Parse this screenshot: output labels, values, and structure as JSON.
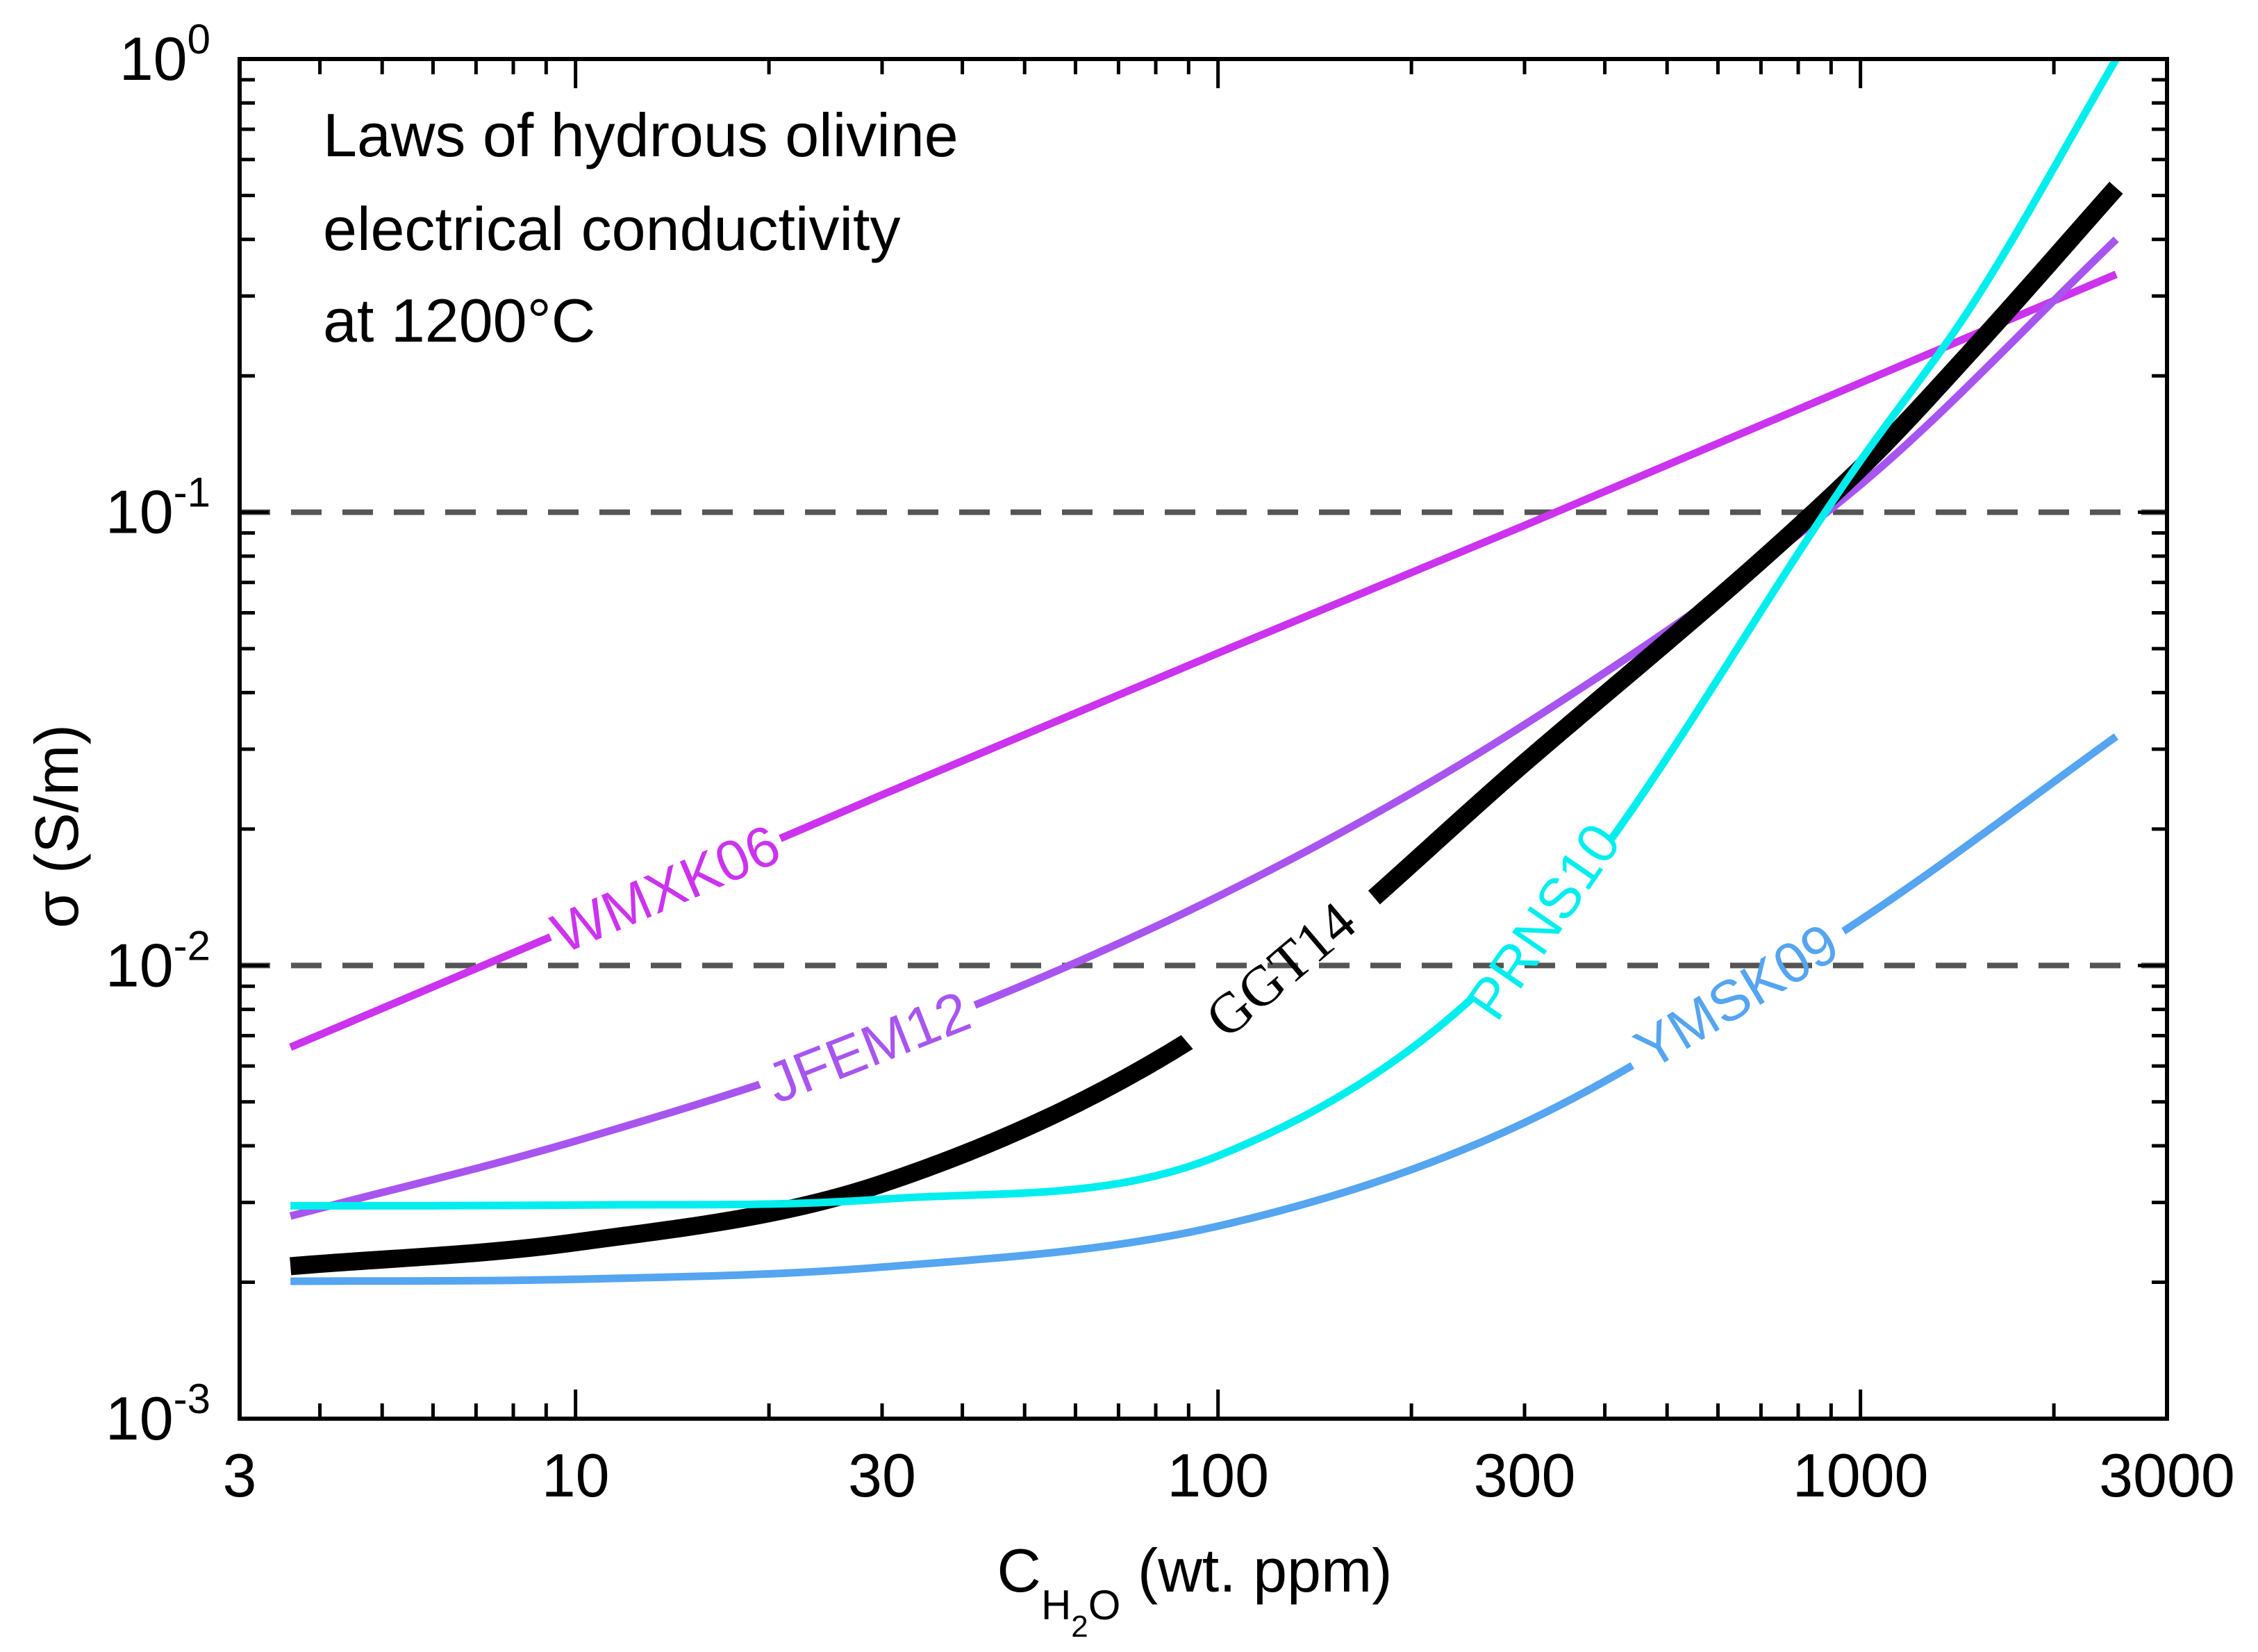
{
  "chart_data": {
    "type": "line",
    "title": "",
    "annotation_lines": [
      "Laws of hydrous olivine",
      "electrical conductivity",
      "at 1200°C"
    ],
    "xlabel": {
      "base": "C",
      "sub_h": "H",
      "sub_2": "2",
      "sub_o": "O",
      "rest": " (wt. ppm)"
    },
    "ylabel": "σ (S/m)",
    "x_scale": "log",
    "y_scale": "log",
    "xlim": [
      3,
      3000
    ],
    "ylim": [
      0.001,
      1
    ],
    "x_ticks": [
      {
        "value": 3,
        "label": "3"
      },
      {
        "value": 10,
        "label": "10"
      },
      {
        "value": 30,
        "label": "30"
      },
      {
        "value": 100,
        "label": "100"
      },
      {
        "value": 300,
        "label": "300"
      },
      {
        "value": 1000,
        "label": "1000"
      },
      {
        "value": 3000,
        "label": "3000"
      }
    ],
    "y_ticks": [
      {
        "value": 0.001,
        "base": "10",
        "exp": "-3"
      },
      {
        "value": 0.01,
        "base": "10",
        "exp": "-2"
      },
      {
        "value": 0.1,
        "base": "10",
        "exp": "-1"
      },
      {
        "value": 1,
        "base": "10",
        "exp": "0"
      }
    ],
    "reference_lines": [
      {
        "y": 0.1,
        "style": "dashed",
        "color": "#555555"
      },
      {
        "y": 0.01,
        "style": "dashed",
        "color": "#555555"
      }
    ],
    "grid": false,
    "legend": "inline labels on curves",
    "series": [
      {
        "name": "WMXK06",
        "color": "#cc33ee",
        "x": [
          3.6,
          10,
          30,
          100,
          300,
          1000,
          2500
        ],
        "y": [
          0.0066,
          0.0122,
          0.0238,
          0.0489,
          0.0935,
          0.193,
          0.335
        ]
      },
      {
        "name": "JFEM12",
        "color": "#a855f0",
        "x": [
          3.6,
          10,
          30,
          100,
          300,
          1000,
          2500
        ],
        "y": [
          0.0028,
          0.0041,
          0.0068,
          0.0142,
          0.034,
          0.115,
          0.4
        ]
      },
      {
        "name": "GGT14",
        "color": "#000000",
        "x": [
          3.6,
          10,
          30,
          100,
          300,
          1000,
          1500,
          2500
        ],
        "y": [
          0.00217,
          0.00245,
          0.0033,
          0.0075,
          0.028,
          0.125,
          0.23,
          0.52
        ]
      },
      {
        "name": "PRNS10",
        "color": "#00eeee",
        "x": [
          3.6,
          10,
          30,
          100,
          300,
          1000,
          1500,
          2500
        ],
        "y": [
          0.00295,
          0.00296,
          0.00305,
          0.0038,
          0.011,
          0.13,
          0.29,
          1.0
        ]
      },
      {
        "name": "YMSK09",
        "color": "#55a5f0",
        "x": [
          3.6,
          10,
          30,
          100,
          300,
          1000,
          2500
        ],
        "y": [
          0.00201,
          0.00203,
          0.00216,
          0.00266,
          0.0045,
          0.0126,
          0.032
        ]
      }
    ]
  }
}
